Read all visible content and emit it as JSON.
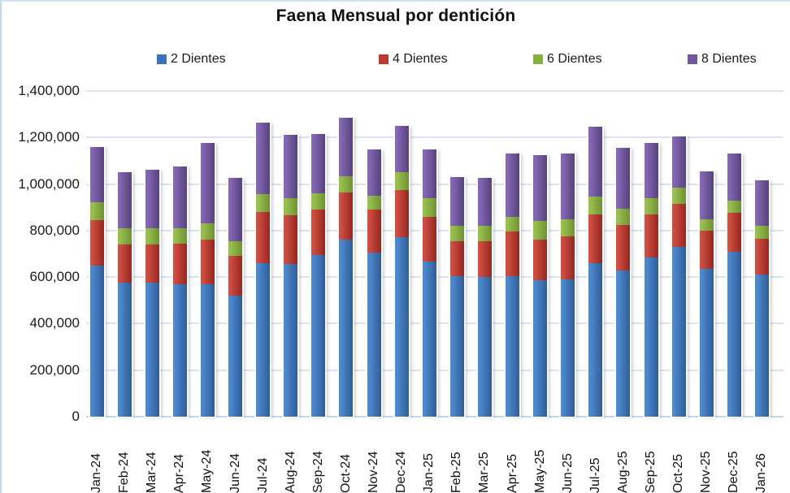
{
  "title": "Faena Mensual por dentición",
  "chart_data": {
    "type": "bar",
    "stacked": true,
    "title": "Faena Mensual por dentición",
    "xlabel": "",
    "ylabel": "",
    "grid": true,
    "legend_position": "top",
    "categories": [
      "Jan-24",
      "Feb-24",
      "Mar-24",
      "Apr-24",
      "May-24",
      "Jun-24",
      "Jul-24",
      "Aug-24",
      "Sep-24",
      "Oct-24",
      "Nov-24",
      "Dec-24",
      "Jan-25",
      "Feb-25",
      "Mar-25",
      "Apr-25",
      "May-25",
      "Jun-25",
      "Jul-25",
      "Aug-25",
      "Sep-25",
      "Oct-25",
      "Nov-25",
      "Dec-25",
      "Jan-26"
    ],
    "series": [
      {
        "name": "2 Dientes",
        "color": "#3A74C1",
        "color_light": "#4E89CE",
        "color_dark": "#2E5E99",
        "values": [
          650000,
          575000,
          575000,
          570000,
          570000,
          520000,
          660000,
          655000,
          695000,
          760000,
          705000,
          770000,
          665000,
          605000,
          600000,
          605000,
          585000,
          590000,
          660000,
          630000,
          685000,
          730000,
          635000,
          710000,
          610000
        ]
      },
      {
        "name": "4 Dientes",
        "color": "#BE3B31",
        "color_light": "#CE4E42",
        "color_dark": "#98271F",
        "values": [
          195000,
          165000,
          165000,
          175000,
          190000,
          170000,
          220000,
          210000,
          195000,
          205000,
          185000,
          205000,
          195000,
          150000,
          155000,
          190000,
          175000,
          185000,
          210000,
          195000,
          185000,
          185000,
          165000,
          165000,
          155000
        ]
      },
      {
        "name": "6 Dientes",
        "color": "#87AF3F",
        "color_light": "#9ABF51",
        "color_dark": "#6F9430",
        "values": [
          75000,
          70000,
          70000,
          65000,
          70000,
          65000,
          75000,
          75000,
          70000,
          70000,
          60000,
          75000,
          80000,
          65000,
          65000,
          65000,
          80000,
          75000,
          75000,
          70000,
          70000,
          70000,
          50000,
          55000,
          55000
        ]
      },
      {
        "name": "8 Dientes",
        "color": "#7156A2",
        "color_light": "#8468B4",
        "color_dark": "#57427E",
        "values": [
          240000,
          240000,
          250000,
          265000,
          345000,
          270000,
          310000,
          270000,
          255000,
          250000,
          200000,
          200000,
          210000,
          210000,
          205000,
          270000,
          285000,
          280000,
          300000,
          260000,
          235000,
          220000,
          205000,
          200000,
          195000
        ]
      }
    ],
    "y_axis": {
      "min": 0,
      "max": 1400000,
      "tick_interval": 200000,
      "tick_labels": [
        "0",
        "200,000",
        "400,000",
        "600,000",
        "800,000",
        "1,000,000",
        "1,200,000",
        "1,400,000"
      ]
    },
    "colors": {
      "gridline": "#D9E3F1",
      "axis_line": "#C3D5EB",
      "text": "#1a1a1a"
    }
  }
}
